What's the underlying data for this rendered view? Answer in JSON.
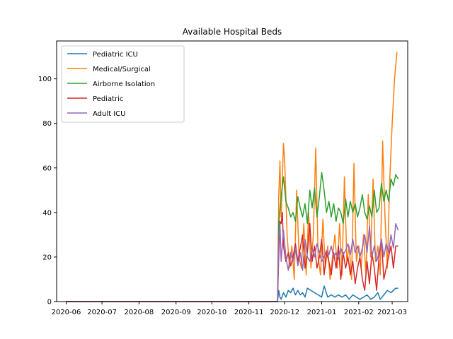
{
  "chart_data": {
    "type": "line",
    "title": "Available Hospital Beds",
    "xlabel": "",
    "ylabel": "",
    "x_ticks": [
      "2020-06",
      "2020-07",
      "2020-08",
      "2020-09",
      "2020-10",
      "2020-11",
      "2020-12",
      "2021-01",
      "2021-02",
      "2021-03"
    ],
    "y_ticks": [
      "0",
      "20",
      "40",
      "60",
      "80",
      "100"
    ],
    "xlim": [
      "2020-05-24",
      "2021-03-14"
    ],
    "ylim": [
      0,
      117
    ],
    "grid": false,
    "legend_position": "top-left",
    "series": [
      {
        "name": "Pediatric ICU",
        "color": "#1f77b4",
        "points": [
          [
            "2020-06-01",
            0
          ],
          [
            "2020-11-25",
            0
          ],
          [
            "2020-11-26",
            5
          ],
          [
            "2020-11-27",
            2
          ],
          [
            "2020-11-28",
            1
          ],
          [
            "2020-11-30",
            4
          ],
          [
            "2020-12-02",
            2
          ],
          [
            "2020-12-04",
            5
          ],
          [
            "2020-12-06",
            4
          ],
          [
            "2020-12-08",
            6
          ],
          [
            "2020-12-10",
            3
          ],
          [
            "2020-12-12",
            5
          ],
          [
            "2020-12-14",
            3
          ],
          [
            "2020-12-16",
            4
          ],
          [
            "2020-12-18",
            2
          ],
          [
            "2020-12-20",
            6
          ],
          [
            "2020-12-23",
            5
          ],
          [
            "2020-12-26",
            4
          ],
          [
            "2020-12-29",
            3
          ],
          [
            "2021-01-01",
            2
          ],
          [
            "2021-01-03",
            7
          ],
          [
            "2021-01-06",
            2
          ],
          [
            "2021-01-09",
            3
          ],
          [
            "2021-01-12",
            2
          ],
          [
            "2021-01-15",
            3
          ],
          [
            "2021-01-18",
            2
          ],
          [
            "2021-01-21",
            3
          ],
          [
            "2021-01-24",
            1
          ],
          [
            "2021-01-27",
            3
          ],
          [
            "2021-01-30",
            2
          ],
          [
            "2021-02-02",
            1
          ],
          [
            "2021-02-05",
            2
          ],
          [
            "2021-02-08",
            3
          ],
          [
            "2021-02-11",
            1
          ],
          [
            "2021-02-14",
            2
          ],
          [
            "2021-02-17",
            4
          ],
          [
            "2021-02-19",
            1
          ],
          [
            "2021-02-22",
            3
          ],
          [
            "2021-02-25",
            5
          ],
          [
            "2021-02-28",
            4
          ],
          [
            "2021-03-02",
            5
          ],
          [
            "2021-03-04",
            6
          ],
          [
            "2021-03-06",
            6
          ]
        ]
      },
      {
        "name": "Medical/Surgical",
        "color": "#ff7f0e",
        "points": [
          [
            "2020-06-01",
            0
          ],
          [
            "2020-11-25",
            0
          ],
          [
            "2020-11-26",
            47
          ],
          [
            "2020-11-27",
            63
          ],
          [
            "2020-11-28",
            38
          ],
          [
            "2020-11-30",
            71
          ],
          [
            "2020-12-01",
            63
          ],
          [
            "2020-12-03",
            30
          ],
          [
            "2020-12-05",
            15
          ],
          [
            "2020-12-07",
            25
          ],
          [
            "2020-12-09",
            10
          ],
          [
            "2020-12-11",
            50
          ],
          [
            "2020-12-13",
            20
          ],
          [
            "2020-12-15",
            15
          ],
          [
            "2020-12-17",
            35
          ],
          [
            "2020-12-19",
            12
          ],
          [
            "2020-12-21",
            40
          ],
          [
            "2020-12-23",
            15
          ],
          [
            "2020-12-25",
            30
          ],
          [
            "2020-12-27",
            69
          ],
          [
            "2020-12-29",
            20
          ],
          [
            "2020-12-31",
            12
          ],
          [
            "2021-01-02",
            37
          ],
          [
            "2021-01-04",
            15
          ],
          [
            "2021-01-06",
            25
          ],
          [
            "2021-01-08",
            10
          ],
          [
            "2021-01-10",
            20
          ],
          [
            "2021-01-12",
            30
          ],
          [
            "2021-01-14",
            15
          ],
          [
            "2021-01-16",
            35
          ],
          [
            "2021-01-18",
            12
          ],
          [
            "2021-01-20",
            56
          ],
          [
            "2021-01-22",
            18
          ],
          [
            "2021-01-24",
            25
          ],
          [
            "2021-01-26",
            10
          ],
          [
            "2021-01-28",
            62
          ],
          [
            "2021-01-30",
            18
          ],
          [
            "2021-02-01",
            25
          ],
          [
            "2021-02-03",
            15
          ],
          [
            "2021-02-05",
            30
          ],
          [
            "2021-02-07",
            12
          ],
          [
            "2021-02-09",
            48
          ],
          [
            "2021-02-11",
            20
          ],
          [
            "2021-02-13",
            55
          ],
          [
            "2021-02-15",
            18
          ],
          [
            "2021-02-17",
            25
          ],
          [
            "2021-02-19",
            12
          ],
          [
            "2021-02-21",
            72
          ],
          [
            "2021-02-23",
            38
          ],
          [
            "2021-02-25",
            15
          ],
          [
            "2021-02-27",
            55
          ],
          [
            "2021-03-01",
            80
          ],
          [
            "2021-03-03",
            100
          ],
          [
            "2021-03-05",
            112
          ]
        ]
      },
      {
        "name": "Airborne Isolation",
        "color": "#2ca02c",
        "points": [
          [
            "2020-06-01",
            0
          ],
          [
            "2020-11-25",
            0
          ],
          [
            "2020-11-26",
            35
          ],
          [
            "2020-11-28",
            47
          ],
          [
            "2020-11-30",
            56
          ],
          [
            "2020-12-02",
            45
          ],
          [
            "2020-12-04",
            42
          ],
          [
            "2020-12-06",
            38
          ],
          [
            "2020-12-08",
            40
          ],
          [
            "2020-12-10",
            36
          ],
          [
            "2020-12-12",
            47
          ],
          [
            "2020-12-14",
            42
          ],
          [
            "2020-12-16",
            38
          ],
          [
            "2020-12-18",
            44
          ],
          [
            "2020-12-20",
            35
          ],
          [
            "2020-12-22",
            50
          ],
          [
            "2020-12-24",
            42
          ],
          [
            "2020-12-26",
            51
          ],
          [
            "2020-12-28",
            38
          ],
          [
            "2020-12-30",
            47
          ],
          [
            "2021-01-01",
            58
          ],
          [
            "2021-01-03",
            50
          ],
          [
            "2021-01-05",
            40
          ],
          [
            "2021-01-07",
            45
          ],
          [
            "2021-01-09",
            38
          ],
          [
            "2021-01-11",
            44
          ],
          [
            "2021-01-13",
            36
          ],
          [
            "2021-01-15",
            42
          ],
          [
            "2021-01-17",
            40
          ],
          [
            "2021-01-19",
            35
          ],
          [
            "2021-01-21",
            46
          ],
          [
            "2021-01-23",
            38
          ],
          [
            "2021-01-25",
            45
          ],
          [
            "2021-01-27",
            40
          ],
          [
            "2021-01-29",
            44
          ],
          [
            "2021-01-31",
            38
          ],
          [
            "2021-02-02",
            42
          ],
          [
            "2021-02-04",
            48
          ],
          [
            "2021-02-06",
            40
          ],
          [
            "2021-02-08",
            37
          ],
          [
            "2021-02-10",
            43
          ],
          [
            "2021-02-12",
            38
          ],
          [
            "2021-02-14",
            50
          ],
          [
            "2021-02-16",
            40
          ],
          [
            "2021-02-18",
            42
          ],
          [
            "2021-02-20",
            53
          ],
          [
            "2021-02-22",
            45
          ],
          [
            "2021-02-24",
            50
          ],
          [
            "2021-02-26",
            45
          ],
          [
            "2021-02-28",
            55
          ],
          [
            "2021-03-02",
            52
          ],
          [
            "2021-03-04",
            57
          ],
          [
            "2021-03-06",
            55
          ]
        ]
      },
      {
        "name": "Pediatric",
        "color": "#d62728",
        "points": [
          [
            "2020-06-01",
            0
          ],
          [
            "2020-11-25",
            0
          ],
          [
            "2020-11-26",
            20
          ],
          [
            "2020-11-27",
            36
          ],
          [
            "2020-11-28",
            35
          ],
          [
            "2020-11-29",
            40
          ],
          [
            "2020-11-30",
            25
          ],
          [
            "2020-12-02",
            18
          ],
          [
            "2020-12-04",
            22
          ],
          [
            "2020-12-06",
            16
          ],
          [
            "2020-12-08",
            20
          ],
          [
            "2020-12-10",
            26
          ],
          [
            "2020-12-12",
            18
          ],
          [
            "2020-12-14",
            24
          ],
          [
            "2020-12-16",
            30
          ],
          [
            "2020-12-18",
            15
          ],
          [
            "2020-12-20",
            22
          ],
          [
            "2020-12-22",
            35
          ],
          [
            "2020-12-24",
            18
          ],
          [
            "2020-12-26",
            25
          ],
          [
            "2020-12-28",
            15
          ],
          [
            "2020-12-30",
            20
          ],
          [
            "2021-01-01",
            28
          ],
          [
            "2021-01-03",
            12
          ],
          [
            "2021-01-05",
            22
          ],
          [
            "2021-01-07",
            18
          ],
          [
            "2021-01-09",
            12
          ],
          [
            "2021-01-11",
            22
          ],
          [
            "2021-01-13",
            15
          ],
          [
            "2021-01-15",
            25
          ],
          [
            "2021-01-17",
            10
          ],
          [
            "2021-01-19",
            22
          ],
          [
            "2021-01-21",
            15
          ],
          [
            "2021-01-23",
            20
          ],
          [
            "2021-01-25",
            12
          ],
          [
            "2021-01-27",
            18
          ],
          [
            "2021-01-29",
            8
          ],
          [
            "2021-01-31",
            15
          ],
          [
            "2021-02-02",
            20
          ],
          [
            "2021-02-04",
            10
          ],
          [
            "2021-02-06",
            5
          ],
          [
            "2021-02-08",
            18
          ],
          [
            "2021-02-10",
            8
          ],
          [
            "2021-02-12",
            22
          ],
          [
            "2021-02-14",
            15
          ],
          [
            "2021-02-16",
            5
          ],
          [
            "2021-02-18",
            20
          ],
          [
            "2021-02-20",
            28
          ],
          [
            "2021-02-22",
            10
          ],
          [
            "2021-02-24",
            15
          ],
          [
            "2021-02-26",
            20
          ],
          [
            "2021-02-28",
            25
          ],
          [
            "2021-03-02",
            15
          ],
          [
            "2021-03-04",
            25
          ],
          [
            "2021-03-06",
            25
          ]
        ]
      },
      {
        "name": "Adult ICU",
        "color": "#9467bd",
        "points": [
          [
            "2020-06-01",
            0
          ],
          [
            "2020-11-25",
            0
          ],
          [
            "2020-11-26",
            27
          ],
          [
            "2020-11-27",
            35
          ],
          [
            "2020-11-28",
            18
          ],
          [
            "2020-11-30",
            32
          ],
          [
            "2020-12-02",
            20
          ],
          [
            "2020-12-04",
            14
          ],
          [
            "2020-12-06",
            22
          ],
          [
            "2020-12-08",
            18
          ],
          [
            "2020-12-10",
            24
          ],
          [
            "2020-12-12",
            16
          ],
          [
            "2020-12-14",
            22
          ],
          [
            "2020-12-16",
            14
          ],
          [
            "2020-12-18",
            28
          ],
          [
            "2020-12-20",
            20
          ],
          [
            "2020-12-22",
            18
          ],
          [
            "2020-12-24",
            24
          ],
          [
            "2020-12-26",
            20
          ],
          [
            "2020-12-28",
            26
          ],
          [
            "2020-12-30",
            22
          ],
          [
            "2021-01-01",
            18
          ],
          [
            "2021-01-03",
            20
          ],
          [
            "2021-01-05",
            23
          ],
          [
            "2021-01-07",
            21
          ],
          [
            "2021-01-09",
            25
          ],
          [
            "2021-01-11",
            20
          ],
          [
            "2021-01-13",
            22
          ],
          [
            "2021-01-15",
            19
          ],
          [
            "2021-01-17",
            24
          ],
          [
            "2021-01-19",
            21
          ],
          [
            "2021-01-21",
            23
          ],
          [
            "2021-01-23",
            26
          ],
          [
            "2021-01-25",
            21
          ],
          [
            "2021-01-27",
            28
          ],
          [
            "2021-01-29",
            22
          ],
          [
            "2021-01-31",
            25
          ],
          [
            "2021-02-02",
            20
          ],
          [
            "2021-02-04",
            24
          ],
          [
            "2021-02-06",
            30
          ],
          [
            "2021-02-08",
            22
          ],
          [
            "2021-02-10",
            34
          ],
          [
            "2021-02-12",
            20
          ],
          [
            "2021-02-14",
            25
          ],
          [
            "2021-02-16",
            18
          ],
          [
            "2021-02-18",
            22
          ],
          [
            "2021-02-20",
            28
          ],
          [
            "2021-02-22",
            20
          ],
          [
            "2021-02-24",
            26
          ],
          [
            "2021-02-26",
            22
          ],
          [
            "2021-02-28",
            30
          ],
          [
            "2021-03-02",
            24
          ],
          [
            "2021-03-04",
            35
          ],
          [
            "2021-03-06",
            32
          ]
        ]
      }
    ]
  }
}
